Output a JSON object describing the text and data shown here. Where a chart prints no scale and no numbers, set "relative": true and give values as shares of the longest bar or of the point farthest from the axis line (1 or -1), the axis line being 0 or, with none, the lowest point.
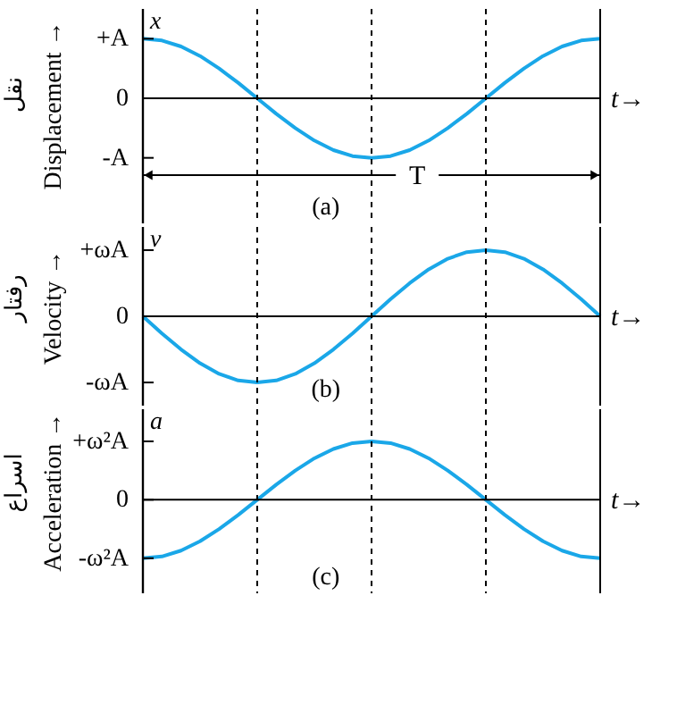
{
  "chart_data": [
    {
      "type": "line",
      "relative": true,
      "ylabel": "Displacement →",
      "xlabel": "t→",
      "categories": [
        null,
        null,
        null,
        null,
        null,
        null,
        null,
        null,
        null,
        null,
        null,
        null,
        null,
        null,
        null,
        null,
        null,
        null,
        null,
        null,
        null,
        null,
        null,
        null,
        null
      ],
      "tick_labels": false,
      "grid": "x",
      "series": [
        {
          "color": "#1aa7e8",
          "values": [
            1,
            0.97,
            0.87,
            0.71,
            0.5,
            0.26,
            0,
            -0.26,
            -0.5,
            -0.71,
            -0.87,
            -0.97,
            -1,
            -0.97,
            -0.87,
            -0.71,
            -0.5,
            -0.26,
            0,
            0.26,
            0.5,
            0.71,
            0.87,
            0.97,
            1
          ]
        }
      ],
      "ref_lines": [
        {
          "axis": "y",
          "value": 0,
          "color": "#000000",
          "line_style": "solid"
        }
      ],
      "annotations": [
        "نقل",
        "x",
        "(a)",
        "+A",
        "0",
        "-A",
        "T"
      ]
    },
    {
      "type": "line",
      "relative": true,
      "ylabel": "Velocity →",
      "xlabel": "t→",
      "categories": [
        null,
        null,
        null,
        null,
        null,
        null,
        null,
        null,
        null,
        null,
        null,
        null,
        null,
        null,
        null,
        null,
        null,
        null,
        null,
        null,
        null,
        null,
        null,
        null,
        null
      ],
      "tick_labels": false,
      "grid": "x",
      "series": [
        {
          "color": "#1aa7e8",
          "values": [
            0,
            -0.26,
            -0.5,
            -0.71,
            -0.87,
            -0.97,
            -1,
            -0.97,
            -0.87,
            -0.71,
            -0.5,
            -0.26,
            0,
            0.26,
            0.5,
            0.71,
            0.87,
            0.97,
            1,
            0.97,
            0.87,
            0.71,
            0.5,
            0.26,
            0
          ]
        }
      ],
      "ref_lines": [
        {
          "axis": "y",
          "value": 0,
          "color": "#000000",
          "line_style": "solid"
        }
      ],
      "annotations": [
        "رفتار",
        "v",
        "(b)",
        "+ωA",
        "0",
        "-ωA"
      ]
    },
    {
      "type": "line",
      "relative": true,
      "ylabel": "Acceleration →",
      "xlabel": "t→",
      "categories": [
        null,
        null,
        null,
        null,
        null,
        null,
        null,
        null,
        null,
        null,
        null,
        null,
        null,
        null,
        null,
        null,
        null,
        null,
        null,
        null,
        null,
        null,
        null,
        null,
        null
      ],
      "tick_labels": false,
      "grid": "x",
      "series": [
        {
          "color": "#1aa7e8",
          "values": [
            -1,
            -0.97,
            -0.87,
            -0.71,
            -0.5,
            -0.26,
            0,
            0.26,
            0.5,
            0.71,
            0.87,
            0.97,
            1,
            0.97,
            0.87,
            0.71,
            0.5,
            0.26,
            0,
            -0.26,
            -0.5,
            -0.71,
            -0.87,
            -0.97,
            -1
          ]
        }
      ],
      "ref_lines": [
        {
          "axis": "y",
          "value": 0,
          "color": "#000000",
          "line_style": "solid"
        }
      ],
      "annotations": [
        "اسراع",
        "a",
        "(c)",
        "+ω²A",
        "0",
        "-ω²A"
      ]
    }
  ]
}
